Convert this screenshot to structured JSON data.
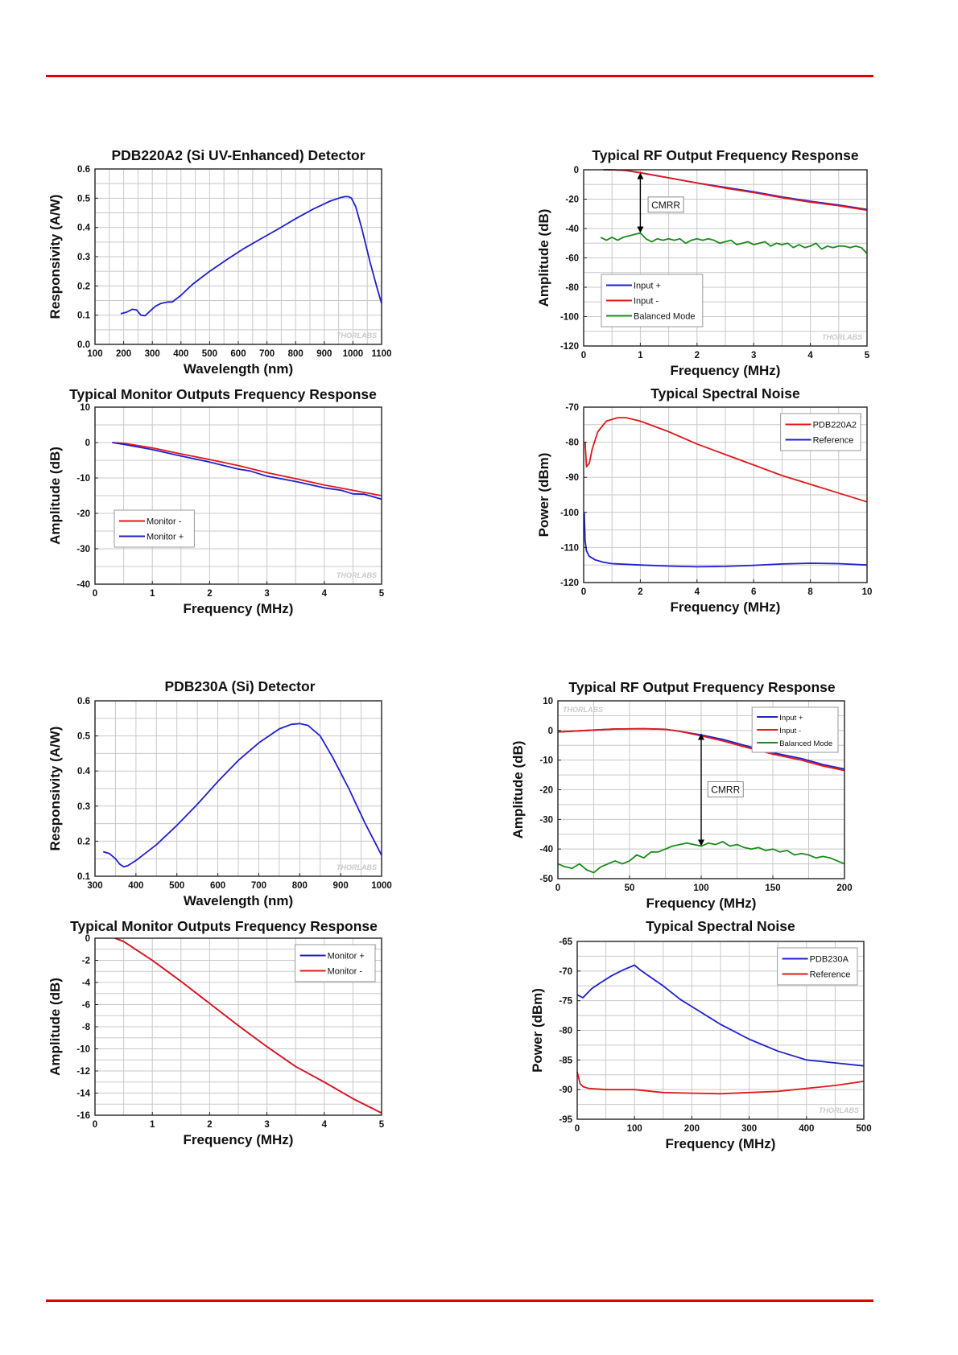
{
  "page": {
    "rule_color": "#e00000"
  },
  "colors": {
    "blue": "#1f1fd0",
    "red": "#e01818",
    "green": "#1a8c1a"
  },
  "chart_data": [
    {
      "id": "c1",
      "type": "line",
      "title": "PDB220A2 (Si UV-Enhanced) Detector",
      "xlabel": "Wavelength (nm)",
      "ylabel": "Responsivity (A/W)",
      "xlim": [
        100,
        1100
      ],
      "ylim": [
        0,
        0.6
      ],
      "xticks": [
        100,
        200,
        300,
        400,
        500,
        600,
        700,
        800,
        900,
        1000,
        1100
      ],
      "yticks": [
        0,
        0.1,
        0.2,
        0.3,
        0.4,
        0.5,
        0.6
      ],
      "ytick_labels": [
        "0.0",
        "0.1",
        "0.2",
        "0.3",
        "0.4",
        "0.5",
        "0.6"
      ],
      "watermark": "THORLABS",
      "wm_pos": "bottom-right",
      "series": [
        {
          "name": "PDB220A2",
          "color": "blue",
          "x": [
            190,
            210,
            230,
            245,
            260,
            275,
            290,
            310,
            330,
            355,
            370,
            400,
            440,
            500,
            560,
            620,
            680,
            740,
            800,
            860,
            920,
            960,
            975,
            985,
            995,
            1010,
            1030,
            1060,
            1085,
            1100
          ],
          "y": [
            0.105,
            0.11,
            0.12,
            0.118,
            0.1,
            0.098,
            0.112,
            0.13,
            0.14,
            0.145,
            0.145,
            0.168,
            0.205,
            0.25,
            0.29,
            0.328,
            0.362,
            0.395,
            0.43,
            0.462,
            0.49,
            0.503,
            0.506,
            0.505,
            0.5,
            0.47,
            0.4,
            0.28,
            0.19,
            0.14
          ]
        }
      ]
    },
    {
      "id": "c2",
      "type": "line",
      "title": "Typical RF Output Frequency Response",
      "xlabel": "Frequency (MHz)",
      "ylabel": "Amplitude (dB)",
      "xlim": [
        0,
        5
      ],
      "ylim": [
        -120,
        0
      ],
      "xticks": [
        0,
        1,
        2,
        3,
        4,
        5
      ],
      "yticks": [
        0,
        -20,
        -40,
        -60,
        -80,
        -100,
        -120
      ],
      "legend": "bottom-left",
      "watermark": "THORLABS",
      "wm_pos": "bottom-right",
      "annotation": {
        "text": "CMRR",
        "x": 1,
        "y_top": -2,
        "y_bottom": -43,
        "label_x": 1.45,
        "label_y": -24
      },
      "series": [
        {
          "name": "Input +",
          "color": "blue",
          "x": [
            0.35,
            0.5,
            0.75,
            1,
            1.5,
            2,
            2.5,
            3,
            3.5,
            4,
            4.5,
            5
          ],
          "y": [
            0,
            0,
            -0.5,
            -2,
            -5.5,
            -9,
            -12,
            -15,
            -18.5,
            -21.5,
            -24,
            -27
          ]
        },
        {
          "name": "Input -",
          "color": "red",
          "x": [
            0.35,
            0.5,
            0.75,
            1,
            1.5,
            2,
            2.5,
            3,
            3.5,
            4,
            4.5,
            5
          ],
          "y": [
            0,
            0,
            -0.5,
            -2,
            -5.5,
            -9,
            -12.5,
            -15.5,
            -19,
            -22,
            -24.5,
            -27.5
          ]
        },
        {
          "name": "Balanced Mode",
          "color": "green",
          "x": [
            0.3,
            0.4,
            0.5,
            0.6,
            0.7,
            0.8,
            0.9,
            1,
            1.1,
            1.2,
            1.3,
            1.4,
            1.5,
            1.6,
            1.7,
            1.8,
            1.9,
            2,
            2.1,
            2.2,
            2.3,
            2.4,
            2.5,
            2.6,
            2.7,
            2.8,
            2.9,
            3,
            3.1,
            3.2,
            3.3,
            3.4,
            3.5,
            3.6,
            3.7,
            3.8,
            3.9,
            4,
            4.1,
            4.2,
            4.3,
            4.4,
            4.5,
            4.6,
            4.7,
            4.8,
            4.9,
            5
          ],
          "y": [
            -46,
            -48,
            -46,
            -48,
            -46,
            -45,
            -44,
            -43,
            -47,
            -49,
            -47,
            -48,
            -47,
            -48,
            -47,
            -50,
            -48,
            -47,
            -48,
            -47,
            -48,
            -50,
            -49,
            -48,
            -51,
            -50,
            -49,
            -51,
            -50,
            -49,
            -52,
            -50,
            -51,
            -50,
            -53,
            -51,
            -53,
            -52,
            -50,
            -54,
            -52,
            -53,
            -52,
            -52,
            -53,
            -52,
            -53,
            -57
          ]
        }
      ]
    },
    {
      "id": "c3",
      "type": "line",
      "title": "Typical Monitor Outputs Frequency Response",
      "xlabel": "Frequency (MHz)",
      "ylabel": "Amplitude (dB)",
      "xlim": [
        0,
        5
      ],
      "ylim": [
        -40,
        10
      ],
      "xticks": [
        0,
        1,
        2,
        3,
        4,
        5
      ],
      "yticks": [
        10,
        0,
        -10,
        -20,
        -30,
        -40
      ],
      "legend": "lower-left",
      "watermark": "THORLABS",
      "wm_pos": "bottom-right",
      "series": [
        {
          "name": "Monitor -",
          "color": "red",
          "x": [
            0.3,
            0.5,
            1,
            1.5,
            2,
            2.5,
            3,
            3.5,
            4,
            4.5,
            5
          ],
          "y": [
            0,
            -0.2,
            -1.5,
            -3.2,
            -4.8,
            -6.5,
            -8.5,
            -10.2,
            -12,
            -13.5,
            -15
          ]
        },
        {
          "name": "Monitor +",
          "color": "blue",
          "x": [
            0.3,
            0.5,
            1,
            1.5,
            2,
            2.5,
            2.7,
            3,
            3.5,
            4,
            4.3,
            4.5,
            4.7,
            5
          ],
          "y": [
            0,
            -0.5,
            -2,
            -3.8,
            -5.5,
            -7.5,
            -8,
            -9.5,
            -11,
            -12.8,
            -13.5,
            -14.5,
            -14.6,
            -16
          ]
        }
      ]
    },
    {
      "id": "c4",
      "type": "line",
      "title": "Typical Spectral Noise",
      "xlabel": "Frequency (MHz)",
      "ylabel": "Power (dBm)",
      "xlim": [
        0,
        10
      ],
      "ylim": [
        -120,
        -70
      ],
      "xticks": [
        0,
        2,
        4,
        6,
        8,
        10
      ],
      "yticks": [
        -70,
        -80,
        -90,
        -100,
        -110,
        -120
      ],
      "legend": "top-right",
      "watermark": "THORLABS",
      "wm_pos": "top-right",
      "series": [
        {
          "name": "PDB220A2",
          "color": "red",
          "x": [
            0.05,
            0.1,
            0.2,
            0.3,
            0.5,
            0.8,
            1.2,
            1.5,
            2,
            3,
            4,
            5,
            6,
            7,
            8,
            9,
            10
          ],
          "y": [
            -80,
            -87,
            -86,
            -82,
            -77,
            -74,
            -73,
            -73,
            -74,
            -77,
            -80.5,
            -83.5,
            -86.5,
            -89.5,
            -92,
            -94.5,
            -97
          ]
        },
        {
          "name": "Reference",
          "color": "blue",
          "x": [
            0.02,
            0.05,
            0.1,
            0.2,
            0.4,
            0.7,
            1,
            2,
            3,
            4,
            5,
            6,
            7,
            8,
            9,
            10
          ],
          "y": [
            -100,
            -108,
            -111,
            -112.5,
            -113.5,
            -114.2,
            -114.6,
            -115,
            -115.3,
            -115.5,
            -115.4,
            -115.1,
            -114.7,
            -114.5,
            -114.6,
            -115
          ]
        }
      ]
    },
    {
      "id": "c5",
      "type": "line",
      "title": "PDB230A (Si) Detector",
      "xlabel": "Wavelength (nm)",
      "ylabel": "Responsivity (A/W)",
      "xlim": [
        300,
        1000
      ],
      "ylim": [
        0.1,
        0.6
      ],
      "xticks": [
        300,
        400,
        500,
        600,
        700,
        800,
        900,
        1000
      ],
      "yticks": [
        0.1,
        0.2,
        0.3,
        0.4,
        0.5,
        0.6
      ],
      "ytick_labels": [
        "0.1",
        "0.2",
        "0.3",
        "0.4",
        "0.5",
        "0.6"
      ],
      "watermark": "THORLABS",
      "wm_pos": "bottom-right",
      "series": [
        {
          "name": "PDB230A",
          "color": "blue",
          "x": [
            320,
            335,
            350,
            360,
            370,
            380,
            400,
            450,
            500,
            550,
            600,
            650,
            700,
            750,
            780,
            800,
            820,
            850,
            880,
            920,
            960,
            1000
          ],
          "y": [
            0.17,
            0.165,
            0.15,
            0.135,
            0.127,
            0.13,
            0.145,
            0.19,
            0.245,
            0.305,
            0.37,
            0.43,
            0.48,
            0.52,
            0.533,
            0.535,
            0.53,
            0.5,
            0.44,
            0.35,
            0.25,
            0.16
          ]
        }
      ]
    },
    {
      "id": "c6",
      "type": "line",
      "title": "Typical RF Output Frequency Response",
      "xlabel": "Frequency (MHz)",
      "ylabel": "Amplitude (dB)",
      "xlim": [
        0,
        200
      ],
      "ylim": [
        -50,
        10
      ],
      "xticks": [
        0,
        50,
        100,
        150,
        200
      ],
      "yticks": [
        10,
        0,
        -10,
        -20,
        -30,
        -40,
        -50
      ],
      "legend": "top-right",
      "watermark": "THORLABS",
      "wm_pos": "top-left",
      "annotation": {
        "text": "CMRR",
        "x": 100,
        "y_top": -1,
        "y_bottom": -39,
        "label_x": 117,
        "label_y": -20
      },
      "series": [
        {
          "name": "Input +",
          "color": "blue",
          "x": [
            0,
            20,
            40,
            60,
            75,
            85,
            100,
            115,
            130,
            150,
            170,
            185,
            200
          ],
          "y": [
            -0.5,
            0,
            0.5,
            0.6,
            0.4,
            -0.3,
            -1.5,
            -3,
            -5,
            -7.5,
            -9.5,
            -11.5,
            -13
          ]
        },
        {
          "name": "Input -",
          "color": "red",
          "x": [
            0,
            20,
            40,
            60,
            75,
            85,
            100,
            115,
            130,
            150,
            170,
            185,
            200
          ],
          "y": [
            -0.5,
            0,
            0.5,
            0.6,
            0.4,
            -0.3,
            -1.8,
            -3.5,
            -5.5,
            -8,
            -10,
            -12,
            -13.5
          ]
        },
        {
          "name": "Balanced Mode",
          "color": "green",
          "x": [
            0,
            5,
            10,
            15,
            20,
            25,
            30,
            35,
            40,
            45,
            50,
            55,
            60,
            65,
            70,
            75,
            80,
            85,
            90,
            95,
            100,
            105,
            110,
            115,
            120,
            125,
            130,
            135,
            140,
            145,
            150,
            155,
            160,
            165,
            170,
            175,
            180,
            185,
            190,
            195,
            200
          ],
          "y": [
            -45,
            -46,
            -46.5,
            -45,
            -47,
            -48,
            -46,
            -45,
            -44,
            -45,
            -44,
            -42,
            -43,
            -41,
            -41,
            -40,
            -39,
            -38.5,
            -38,
            -38.5,
            -39,
            -38,
            -38.5,
            -37.5,
            -39,
            -38.5,
            -39.5,
            -40,
            -39.5,
            -40.5,
            -40,
            -41,
            -40.5,
            -42,
            -41.5,
            -42,
            -43,
            -42.5,
            -43,
            -44,
            -45
          ]
        }
      ]
    },
    {
      "id": "c7",
      "type": "line",
      "title": "Typical Monitor Outputs Frequency Response",
      "xlabel": "Frequency (MHz)",
      "ylabel": "Amplitude (dB)",
      "xlim": [
        0,
        5
      ],
      "ylim": [
        -16,
        0
      ],
      "xticks": [
        0,
        1,
        2,
        3,
        4,
        5
      ],
      "yticks": [
        0,
        -2,
        -4,
        -6,
        -8,
        -10,
        -12,
        -14,
        -16
      ],
      "legend": "top-right",
      "watermark": "THORLABS",
      "wm_pos": "top-right",
      "series": [
        {
          "name": "Monitor +",
          "color": "blue",
          "x": [
            0.35,
            0.5,
            1,
            1.5,
            2,
            2.5,
            3,
            3.5,
            4,
            4.5,
            5
          ],
          "y": [
            0,
            -0.3,
            -2,
            -3.9,
            -5.9,
            -7.9,
            -9.8,
            -11.6,
            -13,
            -14.5,
            -15.8
          ]
        },
        {
          "name": "Monitor -",
          "color": "red",
          "x": [
            0.35,
            0.5,
            1,
            1.5,
            2,
            2.5,
            3,
            3.5,
            4,
            4.5,
            5
          ],
          "y": [
            0,
            -0.3,
            -2,
            -3.9,
            -5.9,
            -7.9,
            -9.8,
            -11.6,
            -13,
            -14.5,
            -15.8
          ]
        }
      ]
    },
    {
      "id": "c8",
      "type": "line",
      "title": "Typical Spectral Noise",
      "xlabel": "Frequency (MHz)",
      "ylabel": "Power (dBm)",
      "xlim": [
        0,
        500
      ],
      "ylim": [
        -95,
        -65
      ],
      "xticks": [
        0,
        100,
        200,
        300,
        400,
        500
      ],
      "yticks": [
        -65,
        -70,
        -75,
        -80,
        -85,
        -90,
        -95
      ],
      "legend": "top-right",
      "watermark": "THORLABS",
      "wm_pos": "bottom-right",
      "series": [
        {
          "name": "PDB230A",
          "color": "blue",
          "x": [
            0,
            10,
            25,
            40,
            60,
            80,
            100,
            110,
            120,
            150,
            180,
            200,
            250,
            300,
            350,
            400,
            450,
            500
          ],
          "y": [
            -74,
            -74.5,
            -73,
            -72,
            -70.8,
            -69.8,
            -69,
            -69.8,
            -70.5,
            -72.5,
            -74.8,
            -76,
            -79,
            -81.5,
            -83.5,
            -85,
            -85.5,
            -86
          ]
        },
        {
          "name": "Reference",
          "color": "red",
          "x": [
            0,
            5,
            10,
            20,
            50,
            100,
            150,
            200,
            250,
            300,
            350,
            400,
            450,
            500
          ],
          "y": [
            -87,
            -89,
            -89.5,
            -89.8,
            -90,
            -90,
            -90.5,
            -90.6,
            -90.7,
            -90.5,
            -90.3,
            -89.8,
            -89.3,
            -88.6
          ]
        }
      ]
    }
  ]
}
